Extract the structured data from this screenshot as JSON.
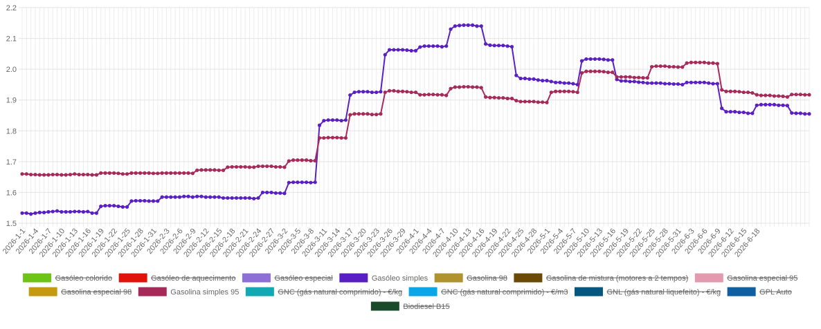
{
  "chart_data": {
    "type": "line",
    "title": "",
    "xlabel": "",
    "ylabel": "",
    "ylim": [
      1.5,
      2.2
    ],
    "yticks": [
      "1.5",
      "1.6",
      "1.7",
      "1.8",
      "1.9",
      "2.0",
      "2.1",
      "2.2"
    ],
    "grid": true,
    "legend_position": "bottom",
    "x_start": "2026-1-1",
    "x_end": "2026-6-18",
    "x_tick_labels": [
      "2026-1-1",
      "2026-1-4",
      "2026-1-7",
      "2026-1-10",
      "2026-1-13",
      "2026-1-16",
      "2026-1-19",
      "2026-1-22",
      "2026-1-25",
      "2026-1-28",
      "2026-1-31",
      "2026-2-3",
      "2026-2-6",
      "2026-2-9",
      "2026-2-12",
      "2026-2-15",
      "2026-2-18",
      "2026-2-21",
      "2026-2-24",
      "2026-2-27",
      "2026-3-2",
      "2026-3-5",
      "2026-3-8",
      "2026-3-11",
      "2026-3-14",
      "2026-3-17",
      "2026-3-20",
      "2026-3-23",
      "2026-3-26",
      "2026-3-29",
      "2026-4-1",
      "2026-4-4",
      "2026-4-7",
      "2026-4-10",
      "2026-4-13",
      "2026-4-16",
      "2026-4-19",
      "2026-4-22",
      "2026-4-25",
      "2026-4-28",
      "2026-5-1",
      "2026-5-4",
      "2026-5-7",
      "2026-5-10",
      "2026-5-13",
      "2026-5-16",
      "2026-5-19",
      "2026-5-22",
      "2026-5-25",
      "2026-5-28",
      "2026-5-31",
      "2026-6-3",
      "2026-6-6",
      "2026-6-9",
      "2026-6-12",
      "2026-6-15",
      "2026-6-18"
    ],
    "series": [
      {
        "name": "Gasóleo simples",
        "color": "#5a1fc2",
        "values": [
          1.533,
          1.533,
          1.53,
          1.533,
          1.535,
          1.535,
          1.537,
          1.538,
          1.54,
          1.537,
          1.537,
          1.537,
          1.538,
          1.538,
          1.537,
          1.538,
          1.533,
          1.533,
          1.555,
          1.557,
          1.557,
          1.557,
          1.555,
          1.553,
          1.553,
          1.572,
          1.573,
          1.573,
          1.573,
          1.572,
          1.572,
          1.572,
          1.585,
          1.585,
          1.585,
          1.585,
          1.585,
          1.587,
          1.587,
          1.585,
          1.587,
          1.587,
          1.585,
          1.585,
          1.585,
          1.585,
          1.582,
          1.582,
          1.582,
          1.582,
          1.582,
          1.582,
          1.582,
          1.58,
          1.582,
          1.6,
          1.6,
          1.6,
          1.598,
          1.598,
          1.597,
          1.632,
          1.633,
          1.633,
          1.633,
          1.633,
          1.632,
          1.633,
          1.818,
          1.833,
          1.835,
          1.835,
          1.835,
          1.833,
          1.835,
          1.916,
          1.925,
          1.927,
          1.927,
          1.927,
          1.925,
          1.925,
          1.927,
          2.047,
          2.063,
          2.063,
          2.063,
          2.063,
          2.062,
          2.06,
          2.06,
          2.072,
          2.075,
          2.075,
          2.075,
          2.075,
          2.073,
          2.075,
          2.13,
          2.14,
          2.142,
          2.143,
          2.143,
          2.143,
          2.14,
          2.14,
          2.082,
          2.078,
          2.077,
          2.077,
          2.077,
          2.075,
          2.073,
          1.98,
          1.97,
          1.97,
          1.968,
          1.968,
          1.965,
          1.963,
          1.963,
          1.96,
          1.957,
          1.957,
          1.955,
          1.955,
          1.953,
          1.95,
          2.027,
          2.033,
          2.033,
          2.033,
          2.033,
          2.032,
          2.03,
          2.03,
          1.967,
          1.962,
          1.962,
          1.96,
          1.96,
          1.958,
          1.957,
          1.955,
          1.955,
          1.955,
          1.955,
          1.953,
          1.953,
          1.952,
          1.952,
          1.95,
          1.957,
          1.957,
          1.957,
          1.957,
          1.957,
          1.955,
          1.953,
          1.953,
          1.873,
          1.862,
          1.862,
          1.862,
          1.86,
          1.86,
          1.857,
          1.857,
          1.883,
          1.885,
          1.885,
          1.885,
          1.885,
          1.883,
          1.883,
          1.882,
          1.858,
          1.857,
          1.857,
          1.855,
          1.855
        ]
      },
      {
        "name": "Gasolina simples 95",
        "color": "#a52a5a",
        "values": [
          1.66,
          1.66,
          1.658,
          1.658,
          1.657,
          1.657,
          1.657,
          1.658,
          1.658,
          1.657,
          1.657,
          1.658,
          1.66,
          1.658,
          1.658,
          1.658,
          1.657,
          1.657,
          1.663,
          1.663,
          1.663,
          1.663,
          1.662,
          1.66,
          1.66,
          1.663,
          1.663,
          1.663,
          1.663,
          1.663,
          1.662,
          1.662,
          1.663,
          1.663,
          1.663,
          1.663,
          1.663,
          1.663,
          1.663,
          1.662,
          1.672,
          1.673,
          1.673,
          1.673,
          1.673,
          1.672,
          1.672,
          1.682,
          1.683,
          1.683,
          1.683,
          1.683,
          1.682,
          1.682,
          1.685,
          1.685,
          1.685,
          1.685,
          1.683,
          1.683,
          1.682,
          1.702,
          1.705,
          1.705,
          1.705,
          1.705,
          1.703,
          1.703,
          1.777,
          1.777,
          1.778,
          1.778,
          1.778,
          1.777,
          1.777,
          1.852,
          1.855,
          1.855,
          1.855,
          1.855,
          1.853,
          1.853,
          1.855,
          1.925,
          1.93,
          1.93,
          1.928,
          1.928,
          1.927,
          1.925,
          1.925,
          1.917,
          1.917,
          1.918,
          1.918,
          1.917,
          1.917,
          1.915,
          1.937,
          1.942,
          1.942,
          1.943,
          1.943,
          1.942,
          1.942,
          1.94,
          1.91,
          1.908,
          1.908,
          1.907,
          1.907,
          1.905,
          1.905,
          1.898,
          1.895,
          1.895,
          1.895,
          1.895,
          1.893,
          1.893,
          1.892,
          1.925,
          1.928,
          1.928,
          1.928,
          1.928,
          1.927,
          1.925,
          1.988,
          1.993,
          1.993,
          1.993,
          1.993,
          1.992,
          1.99,
          1.99,
          1.975,
          1.975,
          1.975,
          1.975,
          1.973,
          1.973,
          1.972,
          1.972,
          2.008,
          2.01,
          2.01,
          2.01,
          2.008,
          2.008,
          2.007,
          2.007,
          2.02,
          2.022,
          2.022,
          2.022,
          2.022,
          2.02,
          2.02,
          2.018,
          1.933,
          1.928,
          1.928,
          1.928,
          1.927,
          1.925,
          1.925,
          1.923,
          1.917,
          1.915,
          1.915,
          1.915,
          1.913,
          1.913,
          1.912,
          1.91,
          1.918,
          1.918,
          1.918,
          1.917,
          1.917
        ]
      }
    ]
  },
  "legend": [
    {
      "label": "Gasóleo colorido",
      "color": "#6cc417",
      "hidden": true
    },
    {
      "label": "Gasóleo de aquecimento",
      "color": "#e0140b",
      "hidden": true
    },
    {
      "label": "Gasóleo especial",
      "color": "#8e6fd8",
      "hidden": true
    },
    {
      "label": "Gasóleo simples",
      "color": "#5a1fc2",
      "hidden": false
    },
    {
      "label": "Gasolina 98",
      "color": "#b0922e",
      "hidden": true
    },
    {
      "label": "Gasolina de mistura (motores a 2 tempos)",
      "color": "#6b4a05",
      "hidden": true
    },
    {
      "label": "Gasolina especial 95",
      "color": "#e39aae",
      "hidden": true
    },
    {
      "label": "Gasolina especial 98",
      "color": "#c59a0e",
      "hidden": true
    },
    {
      "label": "Gasolina simples 95",
      "color": "#a52a5a",
      "hidden": false
    },
    {
      "label": "GNC (gás natural comprimido) - €/kg",
      "color": "#12a8b4",
      "hidden": true
    },
    {
      "label": "GNC (gás natural comprimido) - €/m3",
      "color": "#0aa6e8",
      "hidden": true
    },
    {
      "label": "GNL (gás natural liquefeito) - €/kg",
      "color": "#06577f",
      "hidden": true
    },
    {
      "label": "GPL Auto",
      "color": "#105fa0",
      "hidden": true
    },
    {
      "label": "Biodiesel B15",
      "color": "#1b4a2a",
      "hidden": true
    }
  ]
}
